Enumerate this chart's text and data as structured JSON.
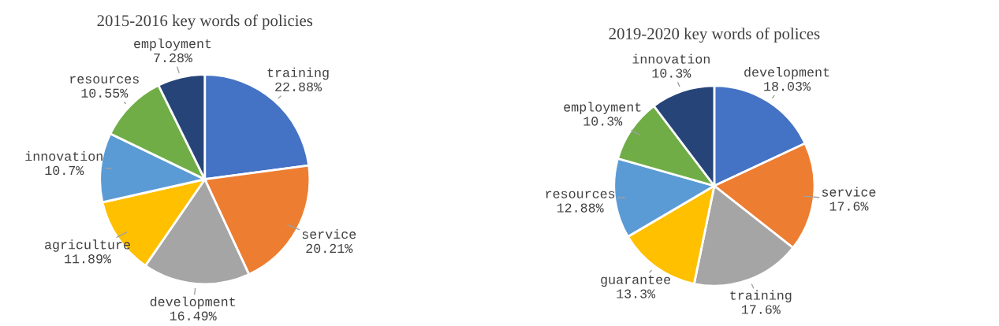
{
  "chart_data": [
    {
      "type": "pie",
      "title": "2015-2016 key words of policies",
      "categories": [
        "training",
        "service",
        "development",
        "agriculture",
        "innovation",
        "resources",
        "employment"
      ],
      "values": [
        22.88,
        20.21,
        16.49,
        11.89,
        10.7,
        10.55,
        7.28
      ],
      "colors": [
        "#4472c4",
        "#ed7d31",
        "#a5a5a5",
        "#ffc000",
        "#5b9bd5",
        "#70ad47",
        "#264478"
      ],
      "value_labels": [
        "22.88%",
        "20.21%",
        "16.49%",
        "11.89%",
        "10.7%",
        "10.55%",
        "7.28%"
      ]
    },
    {
      "type": "pie",
      "title": "2019-2020 key words of polices",
      "categories": [
        "development",
        "service",
        "training",
        "guarantee",
        "resources",
        "employment",
        "innovation"
      ],
      "values": [
        18.03,
        17.6,
        17.6,
        13.3,
        12.88,
        10.3,
        10.3
      ],
      "colors": [
        "#4472c4",
        "#ed7d31",
        "#a5a5a5",
        "#ffc000",
        "#5b9bd5",
        "#70ad47",
        "#264478"
      ],
      "value_labels": [
        "18.03%",
        "17.6%",
        "17.6%",
        "13.3%",
        "12.88%",
        "10.3%",
        "10.3%"
      ]
    }
  ]
}
